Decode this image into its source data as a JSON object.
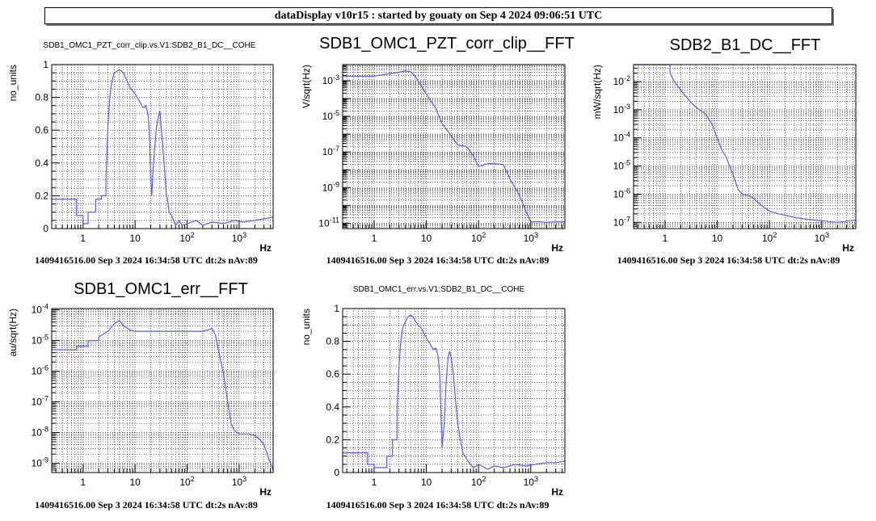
{
  "header": {
    "title": "dataDisplay v10r15 : started by gouaty on Sep  4 2024 09:06:51 UTC"
  },
  "chart_data": [
    {
      "id": "p1",
      "type": "line",
      "title": "SDB1_OMC1_PZT_corr_clip.vs.V1:SDB2_B1_DC__COHE",
      "title_size": "small",
      "xlabel": "Hz",
      "ylabel": "no_units",
      "xscale": "log",
      "xlim": [
        0.25,
        4500
      ],
      "yscale": "linear",
      "ylim": [
        0,
        1
      ],
      "xticks": [
        "1",
        "10",
        "10^2",
        "10^3"
      ],
      "yticks": [
        "0",
        "0.2",
        "0.4",
        "0.6",
        "0.8",
        "1"
      ],
      "footer": "1409416516.00 Sep 3 2024 16:34:58 UTC dt:2s nAv:89",
      "color": "#5a5aee",
      "series": [
        {
          "x": [
            0.25,
            0.75,
            0.75,
            1.0,
            1.0,
            1.25,
            1.25,
            1.75,
            1.75,
            2.25,
            2.25,
            2.75,
            2.75,
            3.0,
            3.25,
            3.5,
            3.75,
            4.0,
            4.5,
            5.0,
            5.5,
            6.0,
            7.0,
            8.0,
            9.0,
            10.0,
            11.0,
            12.0,
            13.0,
            14.0,
            15.0,
            16.0,
            17.0,
            18.0,
            19.0,
            20.0,
            21.0,
            22.0,
            24.0,
            26.0,
            28.0,
            30.0,
            32.0,
            34.0,
            36.0,
            38.0,
            40.0,
            42.0,
            45.0,
            50.0,
            55.0,
            60.0,
            70.0,
            80.0,
            100,
            150,
            200,
            300,
            500,
            800,
            1200,
            2000,
            3000,
            4500
          ],
          "y": [
            0.18,
            0.18,
            0.08,
            0.08,
            0.03,
            0.03,
            0.1,
            0.1,
            0.18,
            0.18,
            0.2,
            0.2,
            0.3,
            0.62,
            0.79,
            0.88,
            0.92,
            0.95,
            0.96,
            0.97,
            0.96,
            0.95,
            0.9,
            0.86,
            0.84,
            0.82,
            0.8,
            0.78,
            0.76,
            0.74,
            0.74,
            0.75,
            0.72,
            0.68,
            0.55,
            0.3,
            0.2,
            0.35,
            0.5,
            0.63,
            0.68,
            0.72,
            0.6,
            0.5,
            0.4,
            0.3,
            0.2,
            0.18,
            0.1,
            0.08,
            0.05,
            0.02,
            0.05,
            0.02,
            0.03,
            0.05,
            0.02,
            0.04,
            0.03,
            0.05,
            0.04,
            0.05,
            0.06,
            0.07
          ]
        }
      ]
    },
    {
      "id": "p2",
      "type": "line",
      "title": "SDB1_OMC1_PZT_corr_clip__FFT",
      "title_size": "mid",
      "xlabel": "Hz",
      "ylabel": "V/sqrt(Hz)",
      "xscale": "log",
      "xlim": [
        0.25,
        4500
      ],
      "yscale": "log",
      "ylim": [
        5e-12,
        0.008
      ],
      "xticks": [
        "1",
        "10",
        "10^2",
        "10^3"
      ],
      "yticks": [
        "10^-11",
        "10^-9",
        "10^-7",
        "10^-5",
        "10^-3"
      ],
      "footer": "1409416516.00 Sep 3 2024 16:34:58 UTC dt:2s nAv:89",
      "color": "#5a5aee",
      "series": [
        {
          "x": [
            0.25,
            1.0,
            2.0,
            3.0,
            4.0,
            5.0,
            6.0,
            8.0,
            10.0,
            15.0,
            20.0,
            30.0,
            40.0,
            50.0,
            60.0,
            80.0,
            100,
            120,
            150,
            200,
            300,
            400,
            600,
            800,
            1000,
            1500,
            2000,
            3000,
            4500
          ],
          "y": [
            0.0018,
            0.0018,
            0.0025,
            0.003,
            0.0035,
            0.0032,
            0.002,
            0.0005,
            0.00018,
            3e-05,
            4e-06,
            8e-07,
            2.5e-07,
            2.2e-07,
            2e-07,
            6e-08,
            1.5e-08,
            1.8e-08,
            2.2e-08,
            2.2e-08,
            2e-08,
            3e-09,
            4e-10,
            5e-11,
            1.2e-11,
            1.2e-11,
            1.1e-11,
            1.2e-11,
            1.2e-11
          ]
        }
      ]
    },
    {
      "id": "p3",
      "type": "line",
      "title": "SDB2_B1_DC__FFT",
      "title_size": "big",
      "xlabel": "Hz",
      "ylabel": "mW/sqrt(Hz)",
      "xscale": "log",
      "xlim": [
        0.25,
        4500
      ],
      "yscale": "log",
      "ylim": [
        6e-08,
        0.04
      ],
      "xticks": [
        "1",
        "10",
        "10^2",
        "10^3"
      ],
      "yticks": [
        "10^-7",
        "10^-6",
        "10^-5",
        "10^-4",
        "10^-3",
        "10^-2"
      ],
      "footer": "1409416516.00 Sep 3 2024 16:34:58 UTC dt:2s nAv:89",
      "color": "#5a5aee",
      "series": [
        {
          "x": [
            0.25,
            1.25,
            1.25,
            1.5,
            2.0,
            2.5,
            3.0,
            3.5,
            4.0,
            5.0,
            6.0,
            8.0,
            10.0,
            12.0,
            15.0,
            20.0,
            25.0,
            30.0,
            40.0,
            50.0,
            70.0,
            100,
            150,
            200,
            300,
            500,
            800,
            1200,
            2000,
            3000,
            4500
          ],
          "y": [
            0.04,
            0.04,
            0.02,
            0.01,
            0.005,
            0.003,
            0.002,
            0.0015,
            0.0012,
            0.0009,
            0.0007,
            0.0003,
            0.0001,
            4e-05,
            2e-05,
            5e-06,
            1.5e-06,
            1e-06,
            9e-07,
            7e-07,
            4e-07,
            2.5e-07,
            2e-07,
            1.8e-07,
            1.5e-07,
            1.3e-07,
            1.2e-07,
            1.1e-07,
            1e-07,
            1.1e-07,
            1.2e-07
          ]
        }
      ]
    },
    {
      "id": "p4",
      "type": "line",
      "title": "SDB1_OMC1_err__FFT",
      "title_size": "big",
      "xlabel": "Hz",
      "ylabel": "au/sqrt(Hz)",
      "xscale": "log",
      "xlim": [
        0.25,
        4500
      ],
      "yscale": "log",
      "ylim": [
        5e-10,
        0.00011
      ],
      "xticks": [
        "1",
        "10",
        "10^2",
        "10^3"
      ],
      "yticks": [
        "10^-9",
        "10^-8",
        "10^-7",
        "10^-6",
        "10^-5",
        "10^-4"
      ],
      "footer": "1409416516.00 Sep 3 2024 16:34:58 UTC dt:2s nAv:89",
      "color": "#5a5aee",
      "series": [
        {
          "x": [
            0.25,
            0.75,
            0.75,
            1.25,
            1.25,
            2.0,
            2.0,
            3.0,
            4.0,
            5.0,
            6.0,
            8.0,
            10.0,
            20.0,
            50.0,
            100,
            200,
            250,
            300,
            350,
            400,
            500,
            600,
            700,
            800,
            1000,
            1500,
            2000,
            2500,
            3000,
            4000,
            4500
          ],
          "y": [
            5e-06,
            5e-06,
            6.5e-06,
            6.5e-06,
            1e-05,
            1e-05,
            1.3e-05,
            2e-05,
            3.5e-05,
            4.5e-05,
            3e-05,
            2.2e-05,
            2e-05,
            2e-05,
            2e-05,
            2e-05,
            2e-05,
            2.2e-05,
            2.5e-05,
            1.5e-05,
            5e-06,
            8e-07,
            1e-07,
            2e-08,
            1.2e-08,
            9e-09,
            9e-09,
            8e-09,
            6e-09,
            4e-09,
            1e-09,
            6e-10
          ]
        }
      ]
    },
    {
      "id": "p5",
      "type": "line",
      "title": "SDB1_OMC1_err.vs.V1:SDB2_B1_DC__COHE",
      "title_size": "small",
      "xlabel": "Hz",
      "ylabel": "no_units",
      "xscale": "log",
      "xlim": [
        0.25,
        4500
      ],
      "yscale": "linear",
      "ylim": [
        0,
        1
      ],
      "xticks": [
        "1",
        "10",
        "10^2",
        "10^3"
      ],
      "yticks": [
        "0",
        "0.2",
        "0.4",
        "0.6",
        "0.8",
        "1"
      ],
      "footer": "1409416516.00 Sep 3 2024 16:34:58 UTC dt:2s nAv:89",
      "color": "#5a5aee",
      "series": [
        {
          "x": [
            0.25,
            0.75,
            0.75,
            1.0,
            1.0,
            1.75,
            1.75,
            2.25,
            2.25,
            2.75,
            2.75,
            3.0,
            3.25,
            3.5,
            4.0,
            4.5,
            5.0,
            5.5,
            6.0,
            7.0,
            8.0,
            9.0,
            10.0,
            11.0,
            12.0,
            13.0,
            14.0,
            15.0,
            16.0,
            17.0,
            18.0,
            19.0,
            20.0,
            22.0,
            24.0,
            26.0,
            28.0,
            30.0,
            33.0,
            36.0,
            40.0,
            45.0,
            50.0,
            60.0,
            70.0,
            80.0,
            100,
            150,
            200,
            300,
            500,
            800,
            1200,
            2000,
            3000,
            4500
          ],
          "y": [
            0.12,
            0.12,
            0.05,
            0.05,
            0.03,
            0.03,
            0.1,
            0.1,
            0.2,
            0.2,
            0.38,
            0.65,
            0.8,
            0.88,
            0.92,
            0.95,
            0.96,
            0.95,
            0.93,
            0.9,
            0.88,
            0.85,
            0.82,
            0.8,
            0.78,
            0.76,
            0.75,
            0.76,
            0.74,
            0.7,
            0.6,
            0.4,
            0.15,
            0.3,
            0.55,
            0.7,
            0.74,
            0.7,
            0.6,
            0.45,
            0.3,
            0.2,
            0.12,
            0.08,
            0.05,
            0.03,
            0.05,
            0.02,
            0.04,
            0.03,
            0.05,
            0.04,
            0.05,
            0.06,
            0.06,
            0.07
          ]
        }
      ]
    }
  ]
}
